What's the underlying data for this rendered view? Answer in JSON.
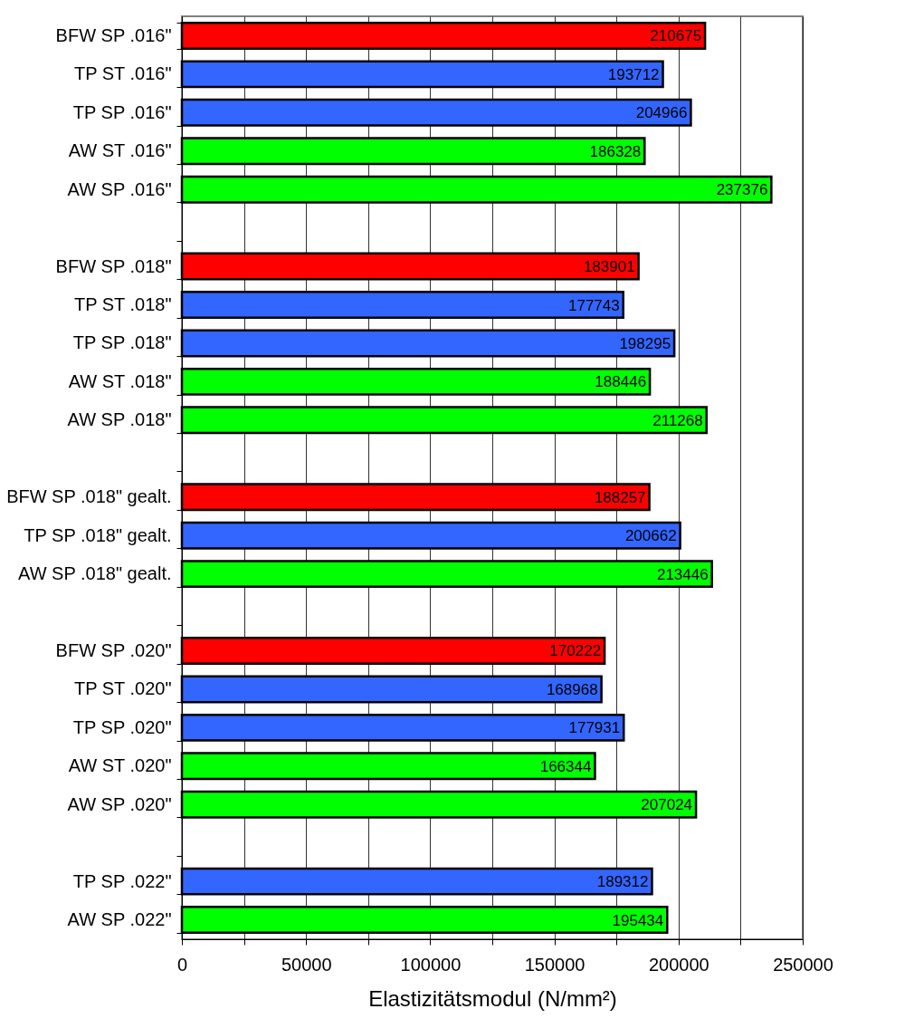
{
  "chart_data": {
    "type": "bar",
    "orientation": "horizontal",
    "xlabel": "Elastizitätsmodul (N/mm²)",
    "categories": [
      "BFW SP .016\"",
      "TP ST .016\"",
      "TP SP .016\"",
      "AW ST .016\"",
      "AW SP .016\"",
      null,
      "BFW SP .018\"",
      "TP ST .018\"",
      "TP SP .018\"",
      "AW ST .018\"",
      "AW SP .018\"",
      null,
      "BFW SP .018\" gealt.",
      "TP SP .018\" gealt.",
      "AW SP .018\" gealt.",
      null,
      "BFW SP .020\"",
      "TP ST .020\"",
      "TP SP .020\"",
      "AW ST .020\"",
      "AW SP .020\"",
      null,
      "TP SP .022\"",
      "AW SP .022\""
    ],
    "values": [
      210675,
      193712,
      204966,
      186328,
      237376,
      null,
      183901,
      177743,
      198295,
      188446,
      211268,
      null,
      188257,
      200662,
      213446,
      null,
      170222,
      168968,
      177931,
      166344,
      207024,
      null,
      189312,
      195434
    ],
    "colors": [
      "#ff0000",
      "#3366ff",
      "#3366ff",
      "#00ff00",
      "#00ff00",
      null,
      "#ff0000",
      "#3366ff",
      "#3366ff",
      "#00ff00",
      "#00ff00",
      null,
      "#ff0000",
      "#3366ff",
      "#00ff00",
      null,
      "#ff0000",
      "#3366ff",
      "#3366ff",
      "#00ff00",
      "#00ff00",
      null,
      "#3366ff",
      "#00ff00"
    ],
    "xlim": [
      0,
      250000
    ],
    "xticks": [
      0,
      {
        "value": 25000,
        "label": null
      },
      50000,
      {
        "value": 75000,
        "label": null
      },
      100000,
      {
        "value": 125000,
        "label": null
      },
      150000,
      {
        "value": 175000,
        "label": null
      },
      200000,
      {
        "value": 225000,
        "label": null
      },
      250000
    ],
    "grid": "x",
    "data_labels": true
  }
}
